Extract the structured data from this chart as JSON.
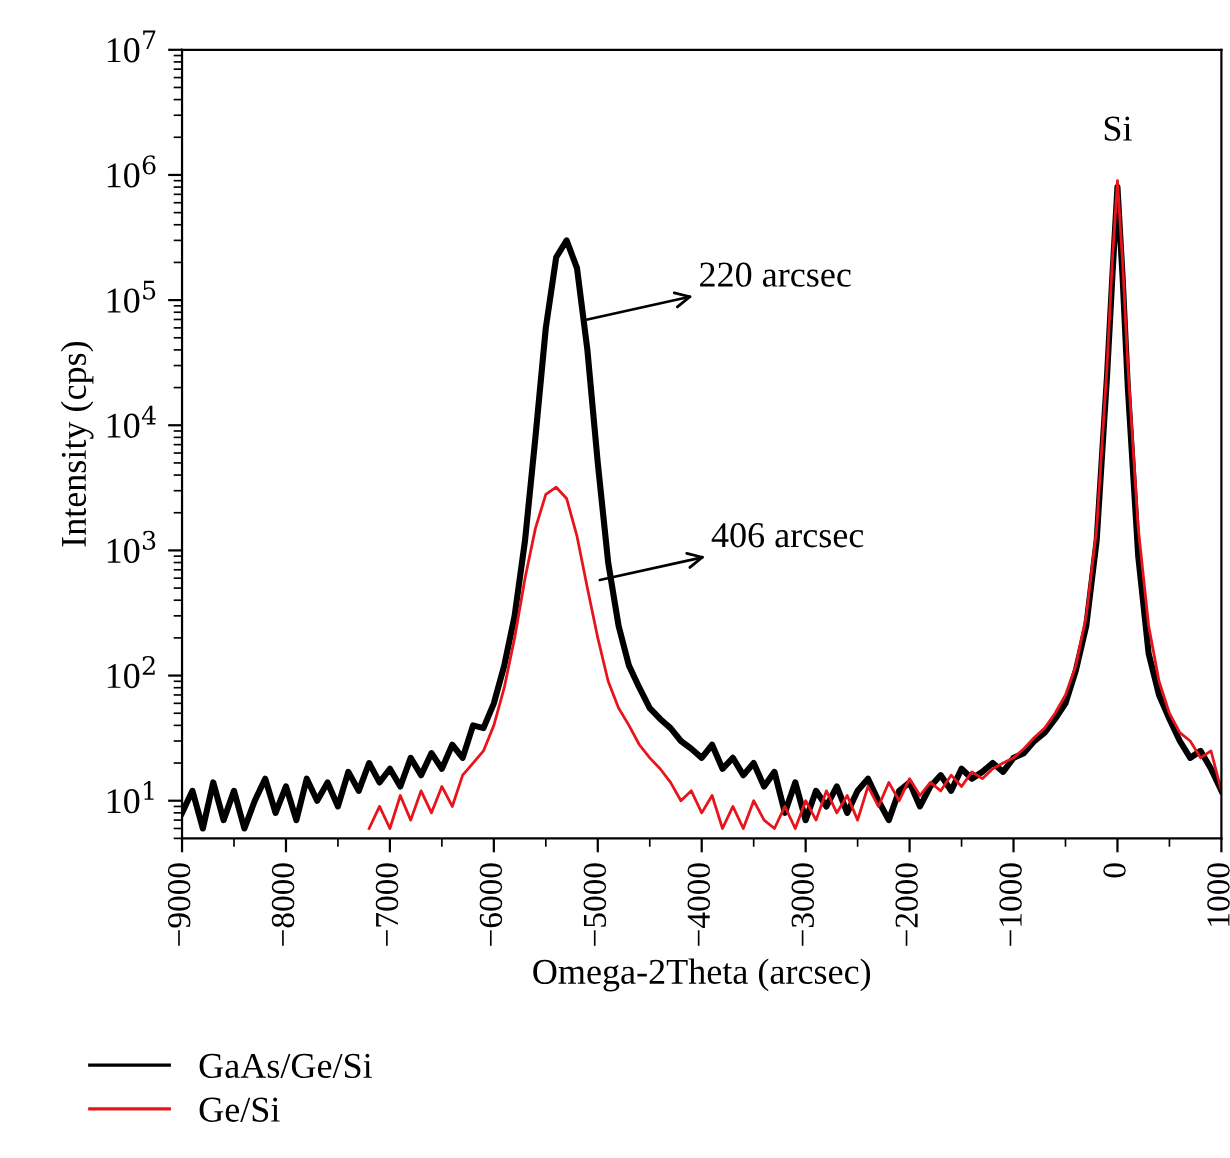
{
  "chart_data": {
    "type": "line",
    "xlabel": "Omega-2Theta (arcsec)",
    "ylabel": "Intensity (cps)",
    "log": "y",
    "xlim": [
      -9000,
      1000
    ],
    "ylim": [
      5,
      10000000
    ],
    "xticks": [
      {
        "value": -9000,
        "label": "−9000"
      },
      {
        "value": -8000,
        "label": "−8000"
      },
      {
        "value": -7000,
        "label": "−7000"
      },
      {
        "value": -6000,
        "label": "−6000"
      },
      {
        "value": -5000,
        "label": "−5000"
      },
      {
        "value": -4000,
        "label": "−4000"
      },
      {
        "value": -3000,
        "label": "−3000"
      },
      {
        "value": -2000,
        "label": "−2000"
      },
      {
        "value": -1000,
        "label": "−1000"
      },
      0,
      1000
    ],
    "yticks": [
      {
        "value": 10,
        "label": "10$^{1}$"
      },
      {
        "value": 100,
        "label": "10$^{2}$"
      },
      {
        "value": 1000,
        "label": "10$^{3}$"
      },
      {
        "value": 10000,
        "label": "10$^{4}$"
      },
      {
        "value": 100000,
        "label": "10$^{5}$"
      },
      {
        "value": 1000000,
        "label": "10$^{6}$"
      },
      {
        "value": 10000000,
        "label": "10$^{7}$"
      }
    ],
    "legend": "bottom left",
    "grid": false,
    "marker": "none",
    "line_style": "solid",
    "annotations": [
      {
        "text": "220 arcsec",
        "x": -5100,
        "y": 70000
      },
      {
        "text": "406 arcsec",
        "x": -4980,
        "y": 580
      },
      "Si"
    ],
    "series": [
      {
        "name": "GaAs/Ge/Si",
        "color": "#000000",
        "x": [
          -9000,
          -8900,
          -8800,
          -8700,
          -8600,
          -8500,
          -8400,
          -8300,
          -8200,
          -8100,
          -8000,
          -7900,
          -7800,
          -7700,
          -7600,
          -7500,
          -7400,
          -7300,
          -7200,
          -7100,
          -7000,
          -6900,
          -6800,
          -6700,
          -6600,
          -6500,
          -6400,
          -6300,
          -6200,
          -6100,
          -6000,
          -5900,
          -5800,
          -5700,
          -5600,
          -5500,
          -5400,
          -5300,
          -5200,
          -5100,
          -5000,
          -4900,
          -4800,
          -4700,
          -4600,
          -4500,
          -4400,
          -4300,
          -4200,
          -4100,
          -4000,
          -3900,
          -3800,
          -3700,
          -3600,
          -3500,
          -3400,
          -3300,
          -3200,
          -3100,
          -3000,
          -2900,
          -2800,
          -2700,
          -2600,
          -2500,
          -2400,
          -2300,
          -2200,
          -2100,
          -2000,
          -1900,
          -1800,
          -1700,
          -1600,
          -1500,
          -1400,
          -1300,
          -1200,
          -1100,
          -1000,
          -900,
          -800,
          -700,
          -600,
          -500,
          -400,
          -300,
          -200,
          -100,
          -50,
          0,
          50,
          100,
          200,
          300,
          400,
          500,
          600,
          700,
          800,
          900,
          1000
        ],
        "values": [
          8,
          12,
          6,
          14,
          7,
          12,
          6,
          10,
          15,
          8,
          13,
          7,
          15,
          10,
          14,
          9,
          17,
          12,
          20,
          14,
          18,
          13,
          22,
          16,
          24,
          18,
          28,
          22,
          40,
          38,
          60,
          120,
          300,
          1200,
          8000,
          60000,
          220000,
          300000,
          180000,
          40000,
          5000,
          800,
          250,
          120,
          80,
          55,
          45,
          38,
          30,
          26,
          22,
          28,
          18,
          22,
          16,
          20,
          13,
          17,
          8,
          14,
          7,
          12,
          9,
          13,
          8,
          12,
          15,
          10,
          7,
          12,
          14,
          9,
          13,
          16,
          12,
          18,
          15,
          17,
          20,
          17,
          22,
          24,
          30,
          35,
          45,
          60,
          110,
          250,
          1200,
          25000,
          150000,
          800000,
          150000,
          20000,
          900,
          150,
          70,
          45,
          30,
          22,
          25,
          18,
          12
        ]
      },
      {
        "name": "Ge/Si",
        "color": "#e8141c",
        "x": [
          -7200,
          -7100,
          -7000,
          -6900,
          -6800,
          -6700,
          -6600,
          -6500,
          -6400,
          -6300,
          -6200,
          -6100,
          -6000,
          -5900,
          -5800,
          -5700,
          -5600,
          -5500,
          -5400,
          -5300,
          -5200,
          -5100,
          -5000,
          -4900,
          -4800,
          -4700,
          -4600,
          -4500,
          -4400,
          -4300,
          -4200,
          -4100,
          -4000,
          -3900,
          -3800,
          -3700,
          -3600,
          -3500,
          -3400,
          -3300,
          -3200,
          -3100,
          -3000,
          -2900,
          -2800,
          -2700,
          -2600,
          -2500,
          -2400,
          -2300,
          -2200,
          -2100,
          -2000,
          -1900,
          -1800,
          -1700,
          -1600,
          -1500,
          -1400,
          -1300,
          -1200,
          -1100,
          -1000,
          -900,
          -800,
          -700,
          -600,
          -500,
          -400,
          -300,
          -200,
          -100,
          -50,
          0,
          50,
          100,
          200,
          300,
          400,
          500,
          600,
          700,
          800,
          900,
          1000
        ],
        "values": [
          6,
          9,
          6,
          11,
          7,
          12,
          8,
          13,
          9,
          16,
          20,
          25,
          40,
          80,
          200,
          600,
          1500,
          2800,
          3200,
          2600,
          1300,
          500,
          200,
          90,
          55,
          40,
          28,
          22,
          18,
          14,
          10,
          12,
          8,
          11,
          6,
          9,
          6,
          10,
          7,
          6,
          9,
          6,
          10,
          7,
          12,
          8,
          11,
          7,
          13,
          9,
          14,
          10,
          15,
          11,
          14,
          12,
          16,
          13,
          17,
          15,
          18,
          20,
          22,
          26,
          32,
          38,
          50,
          70,
          120,
          300,
          1500,
          30000,
          200000,
          900000,
          200000,
          30000,
          1500,
          250,
          90,
          50,
          35,
          30,
          22,
          25,
          12
        ]
      }
    ]
  }
}
